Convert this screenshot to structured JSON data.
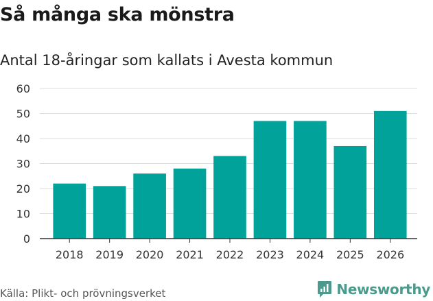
{
  "header": {
    "title": "Så många ska mönstra",
    "subtitle": "Antal 18-åringar som kallats i Avesta kommun"
  },
  "footer": {
    "source": "Källa: Plikt- och prövningsverket",
    "brand": "Newsworthy"
  },
  "colors": {
    "bar": "#00a29a",
    "grid": "#dddddd",
    "axis": "#333333",
    "brand": "#4c9a8d"
  },
  "chart_data": {
    "type": "bar",
    "title": "Så många ska mönstra",
    "subtitle": "Antal 18-åringar som kallats i Avesta kommun",
    "xlabel": "",
    "ylabel": "",
    "categories": [
      "2018",
      "2019",
      "2020",
      "2021",
      "2022",
      "2023",
      "2024",
      "2025",
      "2026"
    ],
    "values": [
      22,
      21,
      26,
      28,
      33,
      47,
      47,
      37,
      51
    ],
    "ylim": [
      0,
      60
    ],
    "yticks": [
      0,
      10,
      20,
      30,
      40,
      50,
      60
    ],
    "grid": true,
    "legend": "none"
  }
}
